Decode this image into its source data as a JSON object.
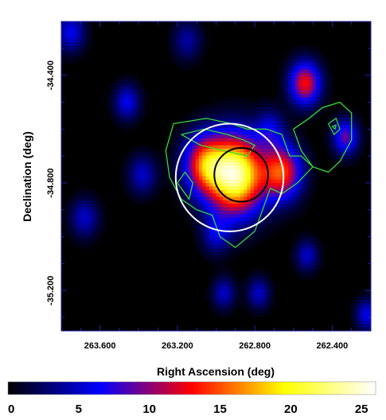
{
  "chart_data": {
    "type": "heatmap",
    "title": "",
    "xlabel": "Right Ascension (deg)",
    "ylabel": "Declination (deg)",
    "xlim": [
      263.8,
      262.2
    ],
    "ylim": [
      -35.35,
      -34.2
    ],
    "x_ticks": [
      263.6,
      263.2,
      262.8,
      262.4
    ],
    "x_tick_labels": [
      "263.600",
      "263.200",
      "262.800",
      "262.400"
    ],
    "y_ticks": [
      -34.4,
      -34.8,
      -35.2
    ],
    "y_tick_labels": [
      "-34.400",
      "-34.800",
      "-35.200"
    ],
    "colorbar": {
      "min": 0,
      "max": 26,
      "tick_values": [
        0,
        5,
        10,
        15,
        20,
        25
      ],
      "tick_labels": [
        "0",
        "5",
        "10",
        "15",
        "20",
        "25"
      ],
      "colors": [
        "#000000",
        "#0000ff",
        "#ff0000",
        "#ffff00",
        "#ffffff"
      ]
    },
    "sources": [
      {
        "ra": 262.9,
        "dec": -34.77,
        "sigma": 0.1,
        "amp": 24
      },
      {
        "ra": 263.06,
        "dec": -34.73,
        "sigma": 0.075,
        "amp": 13
      },
      {
        "ra": 262.66,
        "dec": -34.76,
        "sigma": 0.07,
        "amp": 14
      },
      {
        "ra": 262.54,
        "dec": -34.43,
        "sigma": 0.055,
        "amp": 13
      },
      {
        "ra": 262.33,
        "dec": -34.63,
        "sigma": 0.045,
        "amp": 9
      },
      {
        "ra": 263.46,
        "dec": -34.5,
        "sigma": 0.045,
        "amp": 6
      },
      {
        "ra": 263.38,
        "dec": -34.77,
        "sigma": 0.05,
        "amp": 5
      },
      {
        "ra": 263.75,
        "dec": -34.24,
        "sigma": 0.05,
        "amp": 6
      },
      {
        "ra": 263.68,
        "dec": -34.93,
        "sigma": 0.05,
        "amp": 5
      },
      {
        "ra": 262.96,
        "dec": -35.21,
        "sigma": 0.04,
        "amp": 5
      },
      {
        "ra": 262.78,
        "dec": -35.21,
        "sigma": 0.04,
        "amp": 5
      },
      {
        "ra": 262.53,
        "dec": -35.07,
        "sigma": 0.04,
        "amp": 5
      },
      {
        "ra": 262.22,
        "dec": -35.29,
        "sigma": 0.04,
        "amp": 6
      },
      {
        "ra": 263.15,
        "dec": -34.27,
        "sigma": 0.05,
        "amp": 4
      },
      {
        "ra": 263.0,
        "dec": -34.99,
        "sigma": 0.05,
        "amp": 5
      },
      {
        "ra": 262.72,
        "dec": -34.6,
        "sigma": 0.05,
        "amp": 5
      }
    ],
    "circles": [
      {
        "ra": 262.93,
        "dec": -34.78,
        "radius_deg": 0.2,
        "color": "#ffffff"
      },
      {
        "ra": 262.87,
        "dec": -34.77,
        "radius_deg": 0.1,
        "color": "#000000"
      }
    ],
    "contour_color": "#33dd33",
    "contours": [
      [
        [
          263.22,
          -34.58
        ],
        [
          263.05,
          -34.56
        ],
        [
          262.92,
          -34.58
        ],
        [
          262.84,
          -34.6
        ],
        [
          262.74,
          -34.6
        ],
        [
          262.66,
          -34.62
        ],
        [
          262.62,
          -34.7
        ],
        [
          262.56,
          -34.7
        ],
        [
          262.5,
          -34.74
        ],
        [
          262.58,
          -34.8
        ],
        [
          262.66,
          -34.84
        ],
        [
          262.72,
          -34.82
        ],
        [
          262.76,
          -34.9
        ],
        [
          262.8,
          -34.98
        ],
        [
          262.9,
          -35.04
        ],
        [
          262.98,
          -35.0
        ],
        [
          263.02,
          -34.92
        ],
        [
          263.1,
          -34.9
        ],
        [
          263.18,
          -34.86
        ],
        [
          263.24,
          -34.78
        ],
        [
          263.26,
          -34.68
        ],
        [
          263.22,
          -34.58
        ]
      ],
      [
        [
          263.18,
          -34.62
        ],
        [
          263.06,
          -34.6
        ],
        [
          262.94,
          -34.62
        ],
        [
          262.86,
          -34.64
        ],
        [
          262.8,
          -34.66
        ],
        [
          262.84,
          -34.7
        ],
        [
          262.96,
          -34.68
        ],
        [
          263.08,
          -34.66
        ],
        [
          263.18,
          -34.62
        ]
      ],
      [
        [
          262.6,
          -34.6
        ],
        [
          262.52,
          -34.56
        ],
        [
          262.45,
          -34.52
        ],
        [
          262.36,
          -34.5
        ],
        [
          262.3,
          -34.54
        ],
        [
          262.3,
          -34.64
        ],
        [
          262.36,
          -34.72
        ],
        [
          262.42,
          -34.76
        ],
        [
          262.5,
          -34.74
        ],
        [
          262.56,
          -34.68
        ],
        [
          262.6,
          -34.6
        ]
      ],
      [
        [
          262.42,
          -34.58
        ],
        [
          262.38,
          -34.56
        ],
        [
          262.36,
          -34.6
        ],
        [
          262.39,
          -34.62
        ],
        [
          262.42,
          -34.58
        ]
      ],
      [
        [
          262.4,
          -34.59
        ],
        [
          262.38,
          -34.585
        ],
        [
          262.385,
          -34.6
        ],
        [
          262.4,
          -34.59
        ]
      ],
      [
        [
          263.2,
          -34.8
        ],
        [
          263.16,
          -34.76
        ],
        [
          263.12,
          -34.8
        ],
        [
          263.14,
          -34.86
        ],
        [
          263.2,
          -34.8
        ]
      ]
    ]
  }
}
